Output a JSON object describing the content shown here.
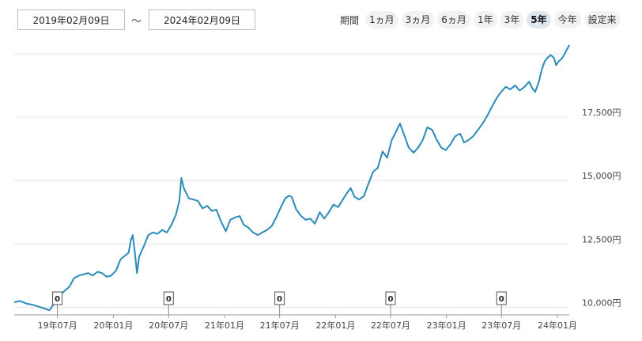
{
  "date_range": {
    "from": "2019年02月09日",
    "separator": "～",
    "to": "2024年02月09日"
  },
  "period": {
    "label": "期間",
    "options": [
      {
        "label": "1ヵ月",
        "active": false
      },
      {
        "label": "3ヵ月",
        "active": false
      },
      {
        "label": "6ヵ月",
        "active": false
      },
      {
        "label": "1年",
        "active": false
      },
      {
        "label": "3年",
        "active": false
      },
      {
        "label": "5年",
        "active": true
      },
      {
        "label": "今年",
        "active": false
      },
      {
        "label": "設定来",
        "active": false
      }
    ]
  },
  "colors": {
    "line": "#2a8bb8",
    "grid": "#e6e6e6",
    "axis": "#999999"
  },
  "chart_data": {
    "type": "line",
    "x_start": "2019-02-09",
    "x_end": "2024-02-09",
    "ylim": [
      9700,
      20500
    ],
    "yticks": [
      {
        "value": 10000,
        "label": "10,000円"
      },
      {
        "value": 12500,
        "label": "12,500円"
      },
      {
        "value": 15000,
        "label": "15,000円"
      },
      {
        "value": 17500,
        "label": "17,500円"
      }
    ],
    "xticks": [
      {
        "date": "2019-07-01",
        "label": "19年07月"
      },
      {
        "date": "2020-01-01",
        "label": "20年01月"
      },
      {
        "date": "2020-07-01",
        "label": "20年07月"
      },
      {
        "date": "2021-01-01",
        "label": "21年01月"
      },
      {
        "date": "2021-07-01",
        "label": "21年07月"
      },
      {
        "date": "2022-01-01",
        "label": "22年01月"
      },
      {
        "date": "2022-07-01",
        "label": "22年07月"
      },
      {
        "date": "2023-01-01",
        "label": "23年01月"
      },
      {
        "date": "2023-07-01",
        "label": "23年07月"
      },
      {
        "date": "2024-01-01",
        "label": "24年01月"
      }
    ],
    "dividends": [
      {
        "date": "2019-07-01",
        "value": "0"
      },
      {
        "date": "2020-07-01",
        "value": "0"
      },
      {
        "date": "2021-07-01",
        "value": "0"
      },
      {
        "date": "2022-07-01",
        "value": "0"
      },
      {
        "date": "2023-07-01",
        "value": "0"
      }
    ],
    "series": [
      {
        "points": [
          [
            "2019-02-09",
            10200
          ],
          [
            "2019-03-01",
            10250
          ],
          [
            "2019-03-20",
            10150
          ],
          [
            "2019-04-10",
            10100
          ],
          [
            "2019-05-01",
            10020
          ],
          [
            "2019-05-20",
            9950
          ],
          [
            "2019-06-05",
            9880
          ],
          [
            "2019-06-20",
            10150
          ],
          [
            "2019-07-01",
            10420
          ],
          [
            "2019-07-20",
            10600
          ],
          [
            "2019-08-10",
            10820
          ],
          [
            "2019-08-25",
            11150
          ],
          [
            "2019-09-10",
            11250
          ],
          [
            "2019-09-25",
            11300
          ],
          [
            "2019-10-10",
            11350
          ],
          [
            "2019-10-25",
            11250
          ],
          [
            "2019-11-10",
            11400
          ],
          [
            "2019-11-25",
            11350
          ],
          [
            "2019-12-10",
            11200
          ],
          [
            "2019-12-25",
            11250
          ],
          [
            "2020-01-10",
            11450
          ],
          [
            "2020-01-25",
            11900
          ],
          [
            "2020-02-10",
            12050
          ],
          [
            "2020-02-20",
            12150
          ],
          [
            "2020-02-28",
            12650
          ],
          [
            "2020-03-05",
            12850
          ],
          [
            "2020-03-12",
            12150
          ],
          [
            "2020-03-19",
            11350
          ],
          [
            "2020-03-26",
            12000
          ],
          [
            "2020-04-10",
            12400
          ],
          [
            "2020-04-25",
            12850
          ],
          [
            "2020-05-10",
            12950
          ],
          [
            "2020-05-25",
            12900
          ],
          [
            "2020-06-10",
            13050
          ],
          [
            "2020-06-25",
            12950
          ],
          [
            "2020-07-10",
            13250
          ],
          [
            "2020-07-25",
            13650
          ],
          [
            "2020-08-05",
            14200
          ],
          [
            "2020-08-12",
            15100
          ],
          [
            "2020-08-20",
            14700
          ],
          [
            "2020-09-05",
            14300
          ],
          [
            "2020-09-20",
            14250
          ],
          [
            "2020-10-05",
            14200
          ],
          [
            "2020-10-20",
            13900
          ],
          [
            "2020-11-05",
            14000
          ],
          [
            "2020-11-20",
            13800
          ],
          [
            "2020-12-05",
            13850
          ],
          [
            "2020-12-20",
            13400
          ],
          [
            "2021-01-05",
            13000
          ],
          [
            "2021-01-20",
            13450
          ],
          [
            "2021-02-05",
            13550
          ],
          [
            "2021-02-20",
            13600
          ],
          [
            "2021-03-05",
            13250
          ],
          [
            "2021-03-20",
            13150
          ],
          [
            "2021-04-05",
            12950
          ],
          [
            "2021-04-20",
            12850
          ],
          [
            "2021-05-05",
            12950
          ],
          [
            "2021-05-20",
            13050
          ],
          [
            "2021-06-05",
            13200
          ],
          [
            "2021-06-20",
            13550
          ],
          [
            "2021-07-05",
            13950
          ],
          [
            "2021-07-20",
            14300
          ],
          [
            "2021-08-01",
            14400
          ],
          [
            "2021-08-10",
            14350
          ],
          [
            "2021-08-25",
            13850
          ],
          [
            "2021-09-10",
            13600
          ],
          [
            "2021-09-25",
            13450
          ],
          [
            "2021-10-10",
            13500
          ],
          [
            "2021-10-25",
            13300
          ],
          [
            "2021-11-10",
            13750
          ],
          [
            "2021-11-25",
            13500
          ],
          [
            "2021-12-10",
            13750
          ],
          [
            "2021-12-25",
            14050
          ],
          [
            "2022-01-10",
            13950
          ],
          [
            "2022-01-25",
            14250
          ],
          [
            "2022-02-10",
            14550
          ],
          [
            "2022-02-20",
            14700
          ],
          [
            "2022-03-05",
            14350
          ],
          [
            "2022-03-20",
            14250
          ],
          [
            "2022-04-05",
            14400
          ],
          [
            "2022-04-20",
            14900
          ],
          [
            "2022-05-05",
            15350
          ],
          [
            "2022-05-20",
            15500
          ],
          [
            "2022-06-05",
            16150
          ],
          [
            "2022-06-20",
            15900
          ],
          [
            "2022-07-05",
            16600
          ],
          [
            "2022-07-20",
            16950
          ],
          [
            "2022-08-01",
            17250
          ],
          [
            "2022-08-15",
            16800
          ],
          [
            "2022-08-30",
            16300
          ],
          [
            "2022-09-15",
            16100
          ],
          [
            "2022-09-30",
            16300
          ],
          [
            "2022-10-15",
            16600
          ],
          [
            "2022-10-30",
            17100
          ],
          [
            "2022-11-15",
            17000
          ],
          [
            "2022-11-30",
            16600
          ],
          [
            "2022-12-15",
            16300
          ],
          [
            "2022-12-30",
            16200
          ],
          [
            "2023-01-15",
            16450
          ],
          [
            "2023-01-30",
            16750
          ],
          [
            "2023-02-15",
            16850
          ],
          [
            "2023-02-28",
            16500
          ],
          [
            "2023-03-15",
            16600
          ],
          [
            "2023-03-30",
            16750
          ],
          [
            "2023-04-15",
            17000
          ],
          [
            "2023-04-30",
            17250
          ],
          [
            "2023-05-15",
            17550
          ],
          [
            "2023-05-30",
            17900
          ],
          [
            "2023-06-15",
            18250
          ],
          [
            "2023-06-30",
            18500
          ],
          [
            "2023-07-15",
            18700
          ],
          [
            "2023-07-30",
            18600
          ],
          [
            "2023-08-15",
            18750
          ],
          [
            "2023-08-30",
            18550
          ],
          [
            "2023-09-15",
            18700
          ],
          [
            "2023-09-30",
            18900
          ],
          [
            "2023-10-10",
            18650
          ],
          [
            "2023-10-20",
            18500
          ],
          [
            "2023-11-01",
            18900
          ],
          [
            "2023-11-10",
            19350
          ],
          [
            "2023-11-20",
            19700
          ],
          [
            "2023-11-30",
            19850
          ],
          [
            "2023-12-10",
            19950
          ],
          [
            "2023-12-20",
            19850
          ],
          [
            "2023-12-28",
            19550
          ],
          [
            "2024-01-05",
            19700
          ],
          [
            "2024-01-15",
            19800
          ],
          [
            "2024-01-25",
            20000
          ],
          [
            "2024-02-09",
            20350
          ]
        ]
      }
    ]
  }
}
